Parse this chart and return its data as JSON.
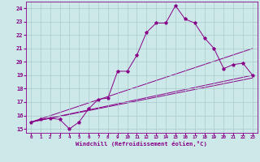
{
  "xlabel": "Windchill (Refroidissement éolien,°C)",
  "bg_color": "#cce8e8",
  "line_color": "#880088",
  "grid_color": "#aacccc",
  "xlim": [
    -0.5,
    23.5
  ],
  "ylim": [
    14.7,
    24.5
  ],
  "xticks": [
    0,
    1,
    2,
    3,
    4,
    5,
    6,
    7,
    8,
    9,
    10,
    11,
    12,
    13,
    14,
    15,
    16,
    17,
    18,
    19,
    20,
    21,
    22,
    23
  ],
  "yticks": [
    15,
    16,
    17,
    18,
    19,
    20,
    21,
    22,
    23,
    24
  ],
  "line1_x": [
    0,
    1,
    2,
    3,
    4,
    5,
    6,
    7,
    8,
    9,
    10,
    11,
    12,
    13,
    14,
    15,
    16,
    17,
    18,
    19,
    20,
    21,
    22,
    23
  ],
  "line1_y": [
    15.5,
    15.7,
    15.8,
    15.7,
    15.0,
    15.5,
    16.5,
    17.2,
    17.3,
    19.3,
    19.3,
    20.5,
    22.2,
    22.9,
    22.9,
    24.2,
    23.2,
    22.9,
    21.8,
    21.0,
    19.5,
    19.8,
    19.9,
    19.0
  ],
  "line2_x": [
    0,
    23
  ],
  "line2_y": [
    15.5,
    21.0
  ],
  "line3_x": [
    0,
    23
  ],
  "line3_y": [
    15.5,
    19.0
  ],
  "line4_x": [
    0,
    23
  ],
  "line4_y": [
    15.5,
    18.8
  ]
}
